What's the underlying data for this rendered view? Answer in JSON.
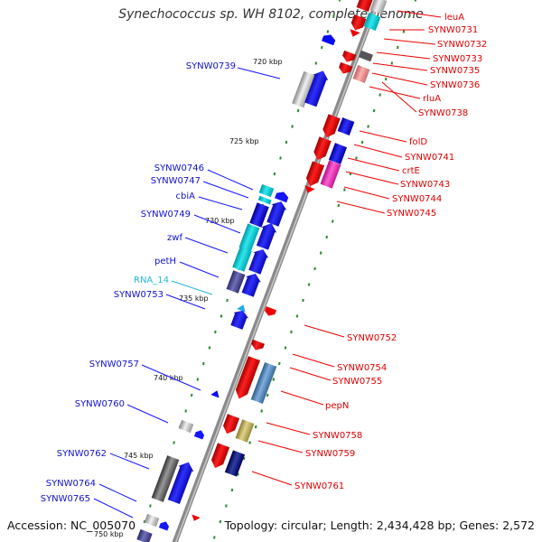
{
  "title": "Synechococcus sp. WH 8102, complete genome",
  "footer": {
    "accession": "Accession: NC_005070",
    "summary": "Topology: circular; Length: 2,434,428 bp; Genes: 2,572"
  },
  "colors": {
    "forward_label": "#1010cc",
    "reverse_label": "#dd0000",
    "rna_label": "#22b8d8",
    "backbone": "#888888",
    "tick": "#2a8a2a"
  },
  "kbp_labels": [
    "720 kbp",
    "725 kbp",
    "730 kbp",
    "735 kbp",
    "740 kbp",
    "745 kbp",
    "750 kbp"
  ],
  "left_labels": [
    {
      "text": "SYNW0739",
      "kind": "forward"
    },
    {
      "text": "SYNW0746",
      "kind": "forward"
    },
    {
      "text": "SYNW0747",
      "kind": "forward"
    },
    {
      "text": "cbiA",
      "kind": "forward"
    },
    {
      "text": "SYNW0749",
      "kind": "forward"
    },
    {
      "text": "zwf",
      "kind": "forward"
    },
    {
      "text": "petH",
      "kind": "forward"
    },
    {
      "text": "RNA_14",
      "kind": "rna"
    },
    {
      "text": "SYNW0753",
      "kind": "forward"
    },
    {
      "text": "SYNW0757",
      "kind": "forward"
    },
    {
      "text": "SYNW0760",
      "kind": "forward"
    },
    {
      "text": "SYNW0762",
      "kind": "forward"
    },
    {
      "text": "SYNW0764",
      "kind": "forward"
    },
    {
      "text": "SYNW0765",
      "kind": "forward"
    }
  ],
  "right_labels": [
    {
      "text": "leuA"
    },
    {
      "text": "SYNW0731"
    },
    {
      "text": "SYNW0732"
    },
    {
      "text": "SYNW0733"
    },
    {
      "text": "SYNW0735"
    },
    {
      "text": "SYNW0736"
    },
    {
      "text": "rluA"
    },
    {
      "text": "SYNW0738"
    },
    {
      "text": "folD"
    },
    {
      "text": "SYNW0741"
    },
    {
      "text": "crtE"
    },
    {
      "text": "SYNW0743"
    },
    {
      "text": "SYNW0744"
    },
    {
      "text": "SYNW0745"
    },
    {
      "text": "SYNW0752"
    },
    {
      "text": "SYNW0754"
    },
    {
      "text": "SYNW0755"
    },
    {
      "text": "pepN"
    },
    {
      "text": "SYNW0758"
    },
    {
      "text": "SYNW0759"
    },
    {
      "text": "SYNW0761"
    }
  ]
}
